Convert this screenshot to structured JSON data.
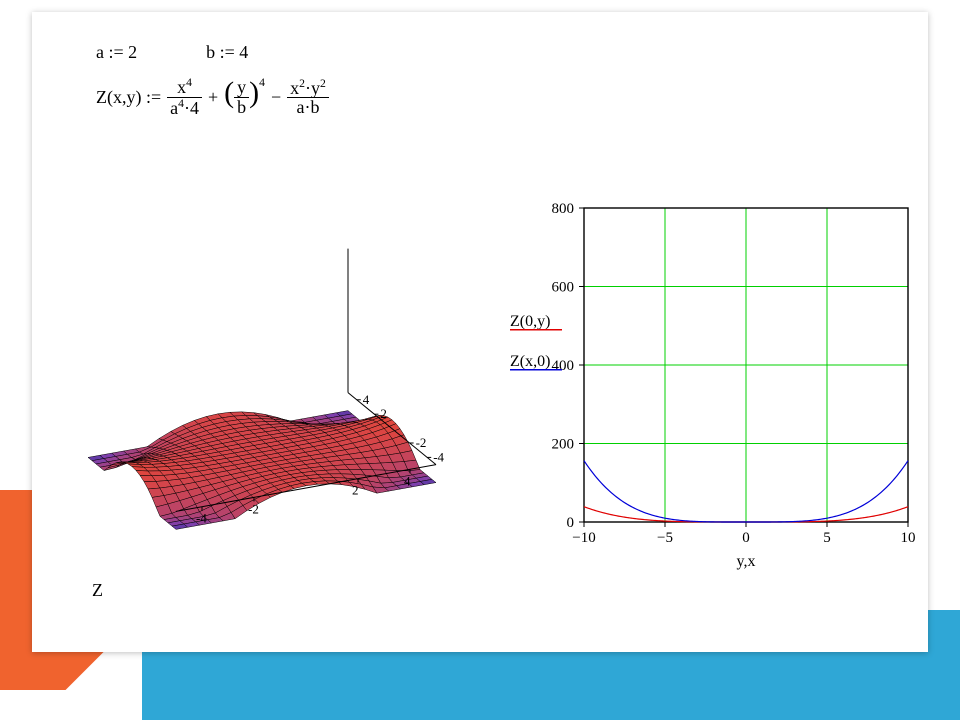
{
  "accent": {
    "orange": "#f0632e",
    "blue": "#2fa7d6"
  },
  "params": {
    "a_label": "a := 2",
    "b_label": "b := 4",
    "a": 2,
    "b": 4
  },
  "formula": {
    "lhs": "Z(x,y) :=",
    "t1_num": "x",
    "t1_num_exp": "4",
    "t1_den": "a",
    "t1_den_exp": "4",
    "t1_den_mult": "4",
    "t2_inner": "y",
    "t2_inner_den": "b",
    "t2_exp": "4",
    "t3_num": "x",
    "t3_num_e1": "2",
    "t3_num2": "y",
    "t3_num_e2": "2",
    "t3_den": "a·b"
  },
  "surface3d": {
    "type": "surface",
    "x_range": [
      -5,
      5
    ],
    "y_range": [
      -5,
      5
    ],
    "nx": 22,
    "ny": 22,
    "axis_color": "#000000",
    "mesh_line_color": "#000000",
    "mesh_line_width": 0.5,
    "color_low": "#1e2a8a",
    "color_mid": "#7a3fb0",
    "color_high": "#e3463a",
    "z_label": "Z",
    "x_ticks": [
      -4,
      -2,
      2,
      4
    ],
    "y_ticks": [
      -4,
      -2,
      2,
      4
    ]
  },
  "chart2d": {
    "type": "line",
    "title_fontsize": 14,
    "xlim": [
      -10,
      10
    ],
    "ylim": [
      0,
      800
    ],
    "x_ticks": [
      -10,
      -5,
      0,
      5,
      10
    ],
    "y_ticks": [
      0,
      200,
      400,
      600,
      800
    ],
    "x_label": "y,x",
    "border_color": "#000000",
    "grid_color": "#00d000",
    "tick_fontsize": 15,
    "label_fontsize": 16,
    "background_color": "#ffffff",
    "series": [
      {
        "name": "Z(0,y)",
        "color": "#e00000",
        "width": 1.2,
        "var": "y",
        "fn": "z0y"
      },
      {
        "name": "Z(x,0)",
        "color": "#0000d8",
        "width": 1.2,
        "var": "x",
        "fn": "zx0"
      }
    ],
    "legend": {
      "x": -10.2,
      "y_top": 500,
      "line_gap": 40,
      "underline_color_matches_series": true
    }
  }
}
